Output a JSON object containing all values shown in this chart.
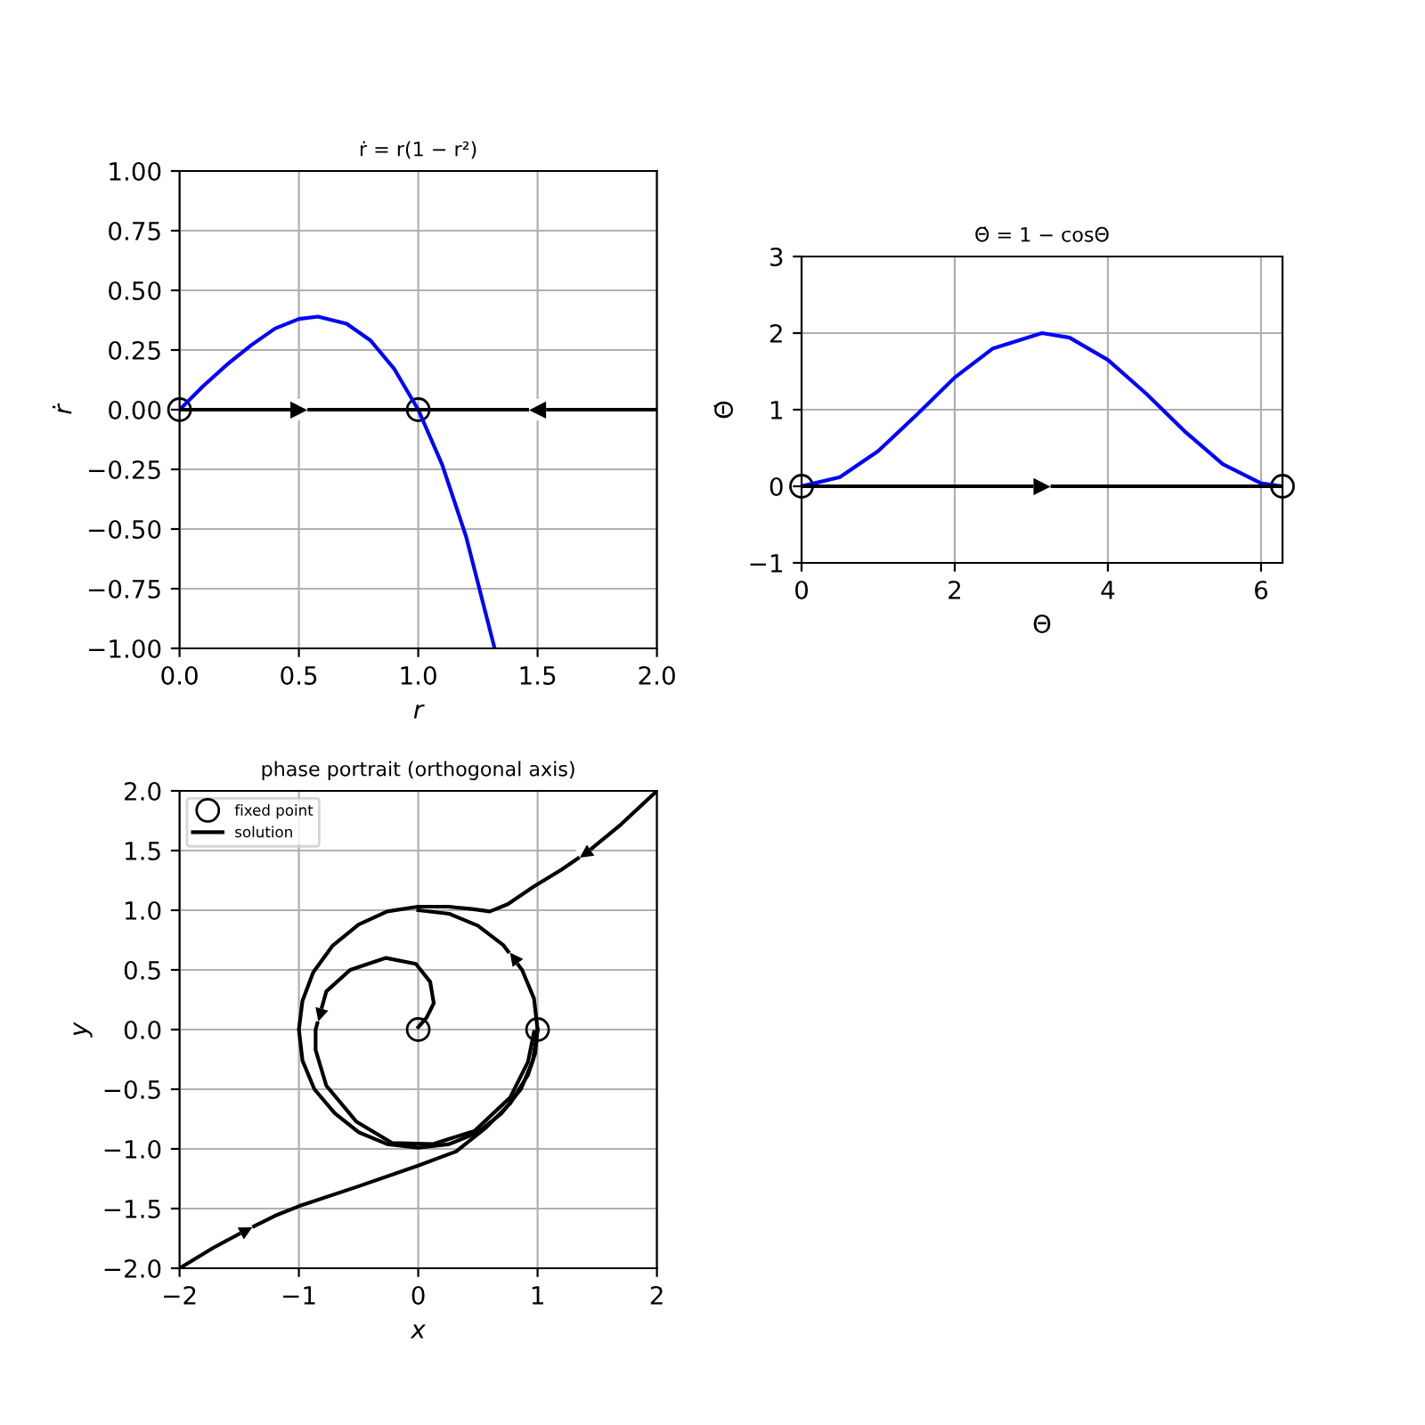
{
  "chart_data": [
    {
      "type": "line",
      "title": "ṙ = r(1 − r²)",
      "xlabel": "r",
      "ylabel": "ṙ",
      "xlim": [
        0,
        2
      ],
      "ylim": [
        -1,
        1
      ],
      "xticks": [
        {
          "value": 0,
          "label": "0.0"
        },
        {
          "value": 0.5,
          "label": "0.5"
        },
        {
          "value": 1,
          "label": "1.0"
        },
        {
          "value": 1.5,
          "label": "1.5"
        },
        {
          "value": 2,
          "label": "2.0"
        }
      ],
      "yticks": [
        {
          "value": -1,
          "label": "−1.00"
        },
        {
          "value": -0.75,
          "label": "−0.75"
        },
        {
          "value": -0.5,
          "label": "−0.50"
        },
        {
          "value": -0.25,
          "label": "−0.25"
        },
        {
          "value": 0,
          "label": "0.00"
        },
        {
          "value": 0.25,
          "label": "0.25"
        },
        {
          "value": 0.5,
          "label": "0.50"
        },
        {
          "value": 0.75,
          "label": "0.75"
        },
        {
          "value": 1,
          "label": "1.00"
        }
      ],
      "grid": true,
      "series": [
        {
          "color": "#0000ff",
          "x": [
            0,
            0.1,
            0.2,
            0.3,
            0.4,
            0.5,
            0.58,
            0.7,
            0.8,
            0.9,
            1.0,
            1.1,
            1.2,
            1.32
          ],
          "values": [
            0,
            0.1,
            0.19,
            0.27,
            0.34,
            0.38,
            0.39,
            0.36,
            0.29,
            0.17,
            0,
            -0.23,
            -0.53,
            -1.0
          ]
        },
        {
          "color": "#000000",
          "x": [
            0,
            2
          ],
          "values": [
            0,
            0
          ]
        },
        {
          "type": "scatter",
          "marker": "circle",
          "color": "#000000",
          "x": [
            0,
            1
          ],
          "values": [
            0,
            0
          ]
        }
      ],
      "annotations": [
        {
          "text": "▶",
          "x": 0.5,
          "y": 0
        },
        {
          "text": "◀",
          "x": 1.5,
          "y": 0
        }
      ]
    },
    {
      "type": "line",
      "title": "Θ̇ = 1 − cosΘ",
      "xlabel": "Θ",
      "ylabel": "Θ̇",
      "xlim": [
        0,
        6.28
      ],
      "ylim": [
        -1,
        3
      ],
      "xticks": [
        0,
        2,
        4,
        6
      ],
      "yticks": [
        {
          "value": -1,
          "label": "−1"
        },
        0,
        1,
        2,
        3
      ],
      "grid": true,
      "series": [
        {
          "color": "#0000ff",
          "x": [
            0,
            0.5,
            1,
            1.5,
            2,
            2.5,
            3.14,
            3.5,
            4,
            4.5,
            5,
            5.5,
            6,
            6.28
          ],
          "values": [
            0,
            0.12,
            0.46,
            0.93,
            1.42,
            1.8,
            2.0,
            1.94,
            1.65,
            1.21,
            0.72,
            0.29,
            0.04,
            0
          ]
        },
        {
          "color": "#000000",
          "x": [
            0,
            6.28
          ],
          "values": [
            0,
            0
          ]
        },
        {
          "type": "scatter",
          "marker": "circle",
          "color": "#000000",
          "x": [
            0,
            6.28
          ],
          "values": [
            0,
            0
          ]
        }
      ],
      "annotations": [
        {
          "text": "▶",
          "x": 3.14,
          "y": 0
        }
      ]
    },
    {
      "type": "line",
      "title": "phase portrait (orthogonal axis)",
      "xlabel": "x",
      "ylabel": "y",
      "xlim": [
        -2,
        2
      ],
      "ylim": [
        -2,
        2
      ],
      "xticks": [
        {
          "value": -2,
          "label": "−2"
        },
        {
          "value": -1,
          "label": "−1"
        },
        0,
        1,
        2
      ],
      "yticks": [
        {
          "value": -2,
          "label": "−2.0"
        },
        {
          "value": -1.5,
          "label": "−1.5"
        },
        {
          "value": -1,
          "label": "−1.0"
        },
        {
          "value": -0.5,
          "label": "−0.5"
        },
        {
          "value": 0,
          "label": "0.0"
        },
        {
          "value": 0.5,
          "label": "0.5"
        },
        {
          "value": 1,
          "label": "1.0"
        },
        {
          "value": 1.5,
          "label": "1.5"
        },
        {
          "value": 2,
          "label": "2.0"
        }
      ],
      "grid": true,
      "legend": "top left",
      "series": [
        {
          "type": "scatter",
          "name": "fixed point",
          "marker": "circle",
          "color": "#000000",
          "x": [
            0,
            1
          ],
          "values": [
            0,
            0
          ]
        },
        {
          "name": "solution",
          "color": "#000000",
          "x": [
            2,
            1.7,
            1.42,
            1.2,
            0.97,
            0.75,
            0.6,
            0.45,
            0.25,
            0,
            -0.26,
            -0.5,
            -0.72,
            -0.88,
            -0.97,
            -1.0,
            -0.97,
            -0.87,
            -0.7,
            -0.5,
            -0.26,
            0,
            0.26,
            0.5,
            0.7,
            0.86,
            0.96,
            1
          ],
          "values": [
            2,
            1.72,
            1.49,
            1.34,
            1.2,
            1.05,
            0.99,
            1.01,
            1.03,
            1.03,
            0.99,
            0.88,
            0.7,
            0.48,
            0.24,
            0,
            -0.26,
            -0.5,
            -0.7,
            -0.86,
            -0.96,
            -0.99,
            -0.96,
            -0.86,
            -0.7,
            -0.5,
            -0.26,
            0
          ]
        },
        {
          "color": "#000000",
          "x": [
            1,
            0.97,
            0.87,
            0.71,
            0.5,
            0.26,
            0
          ],
          "values": [
            0,
            0.26,
            0.5,
            0.71,
            0.87,
            0.97,
            1
          ]
        },
        {
          "color": "#000000",
          "x": [
            -2,
            -1.72,
            -1.44,
            -1.2,
            -1.0,
            -0.52,
            0,
            0.32,
            0.57,
            0.77,
            0.92,
            0.98,
            1
          ],
          "values": [
            -2,
            -1.83,
            -1.68,
            -1.56,
            -1.48,
            -1.32,
            -1.14,
            -1.02,
            -0.82,
            -0.62,
            -0.38,
            -0.2,
            0
          ]
        },
        {
          "color": "#000000",
          "x": [
            0,
            0.07,
            0.13,
            0.1,
            -0.02,
            -0.27,
            -0.57,
            -0.77,
            -0.86,
            -0.86,
            -0.77,
            -0.52,
            -0.22,
            0.12,
            0.47,
            0.77,
            0.92,
            0.97
          ],
          "values": [
            0.02,
            0.1,
            0.22,
            0.4,
            0.55,
            0.6,
            0.5,
            0.32,
            0.0,
            -0.17,
            -0.47,
            -0.77,
            -0.95,
            -0.96,
            -0.85,
            -0.57,
            -0.27,
            -0.02
          ]
        }
      ],
      "annotations": [
        {
          "text": "▶",
          "x": 1.4,
          "y": 1.47
        },
        {
          "text": "▶",
          "x": 0.8,
          "y": 0.6
        },
        {
          "text": "▶",
          "x": -0.82,
          "y": 0.12
        },
        {
          "text": "▶",
          "x": -1.44,
          "y": -1.68
        }
      ]
    }
  ]
}
